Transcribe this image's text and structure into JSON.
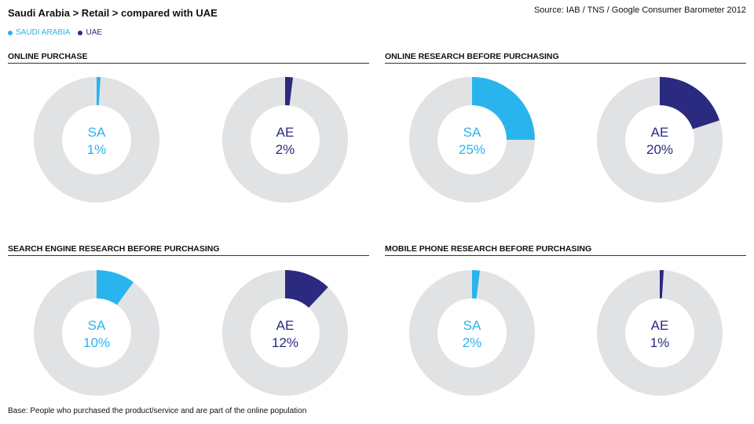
{
  "header": {
    "title": "Saudi Arabia > Retail > compared with UAE",
    "source": "Source: IAB / TNS / Google Consumer Barometer 2012"
  },
  "legend": [
    {
      "label": "SAUDI ARABIA",
      "color": "#2bb1ea"
    },
    {
      "label": "UAE",
      "color": "#2a2a80"
    }
  ],
  "colors": {
    "sa": "#29b4ee",
    "ae": "#2a2a80",
    "remainder": "#e1e2e4"
  },
  "footnote": "Base: People who purchased the product/service and are part of the online population",
  "chart_data": [
    {
      "type": "pie",
      "title": "ONLINE PURCHASE",
      "series": [
        {
          "name": "SA",
          "value": 1,
          "label": "1%"
        },
        {
          "name": "AE",
          "value": 2,
          "label": "2%"
        }
      ]
    },
    {
      "type": "pie",
      "title": "ONLINE RESEARCH BEFORE PURCHASING",
      "series": [
        {
          "name": "SA",
          "value": 25,
          "label": "25%"
        },
        {
          "name": "AE",
          "value": 20,
          "label": "20%"
        }
      ]
    },
    {
      "type": "pie",
      "title": "SEARCH ENGINE RESEARCH BEFORE PURCHASING",
      "series": [
        {
          "name": "SA",
          "value": 10,
          "label": "10%"
        },
        {
          "name": "AE",
          "value": 12,
          "label": "12%"
        }
      ]
    },
    {
      "type": "pie",
      "title": "MOBILE PHONE RESEARCH BEFORE PURCHASING",
      "series": [
        {
          "name": "SA",
          "value": 2,
          "label": "2%"
        },
        {
          "name": "AE",
          "value": 1,
          "label": "1%"
        }
      ]
    }
  ]
}
